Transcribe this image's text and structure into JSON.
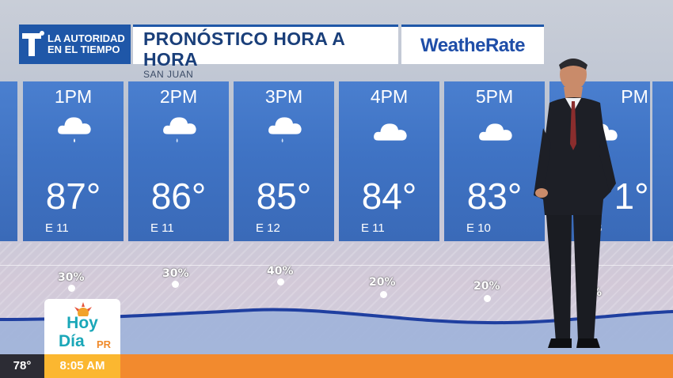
{
  "header": {
    "network_logo_line1": "LA AUTORIDAD",
    "network_logo_line2": "EN EL TIEMPO",
    "title": "PRONÓSTICO HORA A HORA",
    "location": "SAN JUAN",
    "brand": "WeatheRate"
  },
  "forecast": [
    {
      "time": "1PM",
      "icon": "cloud-rain-icon",
      "temp": "87°",
      "wind": "E 11",
      "precip": "30%"
    },
    {
      "time": "2PM",
      "icon": "cloud-rain-icon",
      "temp": "86°",
      "wind": "E 11",
      "precip": "30%"
    },
    {
      "time": "3PM",
      "icon": "cloud-rain-icon",
      "temp": "85°",
      "wind": "E 12",
      "precip": "40%"
    },
    {
      "time": "4PM",
      "icon": "cloud-icon",
      "temp": "84°",
      "wind": "E 11",
      "precip": "20%"
    },
    {
      "time": "5PM",
      "icon": "cloud-icon",
      "temp": "83°",
      "wind": "E 10",
      "precip": "20%"
    },
    {
      "time": "PM",
      "icon": "cloud-icon",
      "temp": "1°",
      "wind": "8",
      "precip": "%"
    }
  ],
  "ticker": {
    "temperature": "78°",
    "time": "8:05 AM",
    "show_name_line1": "Hoy",
    "show_name_line2": "Día",
    "show_name_suffix": "PR"
  },
  "colors": {
    "card_blue": "#4a7fcf",
    "brand_blue": "#1f57a8",
    "ticker_orange": "#f28a2e",
    "ticker_yellow": "#fbb730"
  }
}
